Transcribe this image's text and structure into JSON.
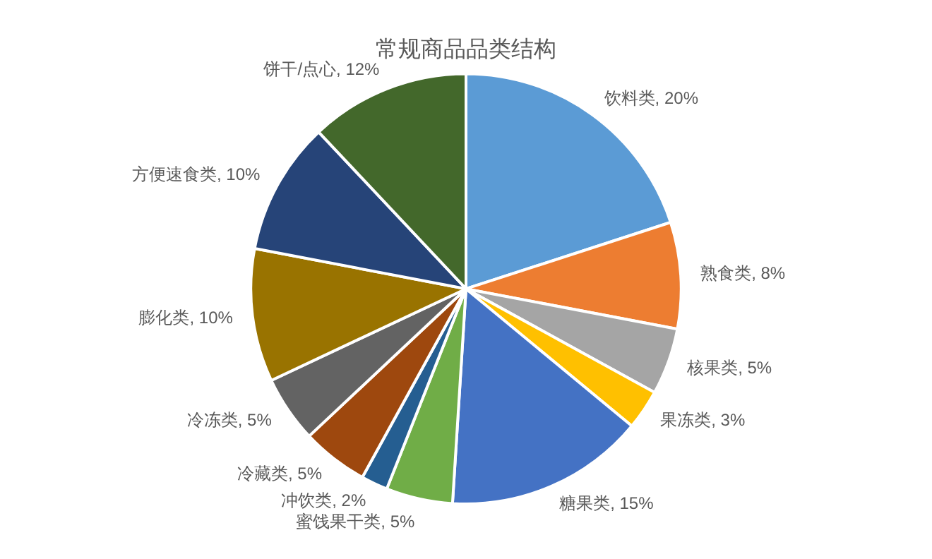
{
  "chart_data": {
    "type": "pie",
    "title": "常规商品品类结构",
    "categories": [
      "饮料类",
      "熟食类",
      "核果类",
      "果冻类",
      "糖果类",
      "蜜饯果干类",
      "冲饮类",
      "冷藏类",
      "冷冻类",
      "膨化类",
      "方便速食类",
      "饼干/点心"
    ],
    "values": [
      20,
      8,
      5,
      3,
      15,
      5,
      2,
      5,
      5,
      10,
      10,
      12
    ],
    "value_labels": [
      "20%",
      "8%",
      "5%",
      "3%",
      "15%",
      "5%",
      "2%",
      "5%",
      "5%",
      "10%",
      "10%",
      "12%"
    ],
    "colors": [
      "#5b9bd5",
      "#ed7d31",
      "#a5a5a5",
      "#ffc000",
      "#4472c4",
      "#70ad47",
      "#255e91",
      "#9e480e",
      "#636363",
      "#997300",
      "#264478",
      "#43682b"
    ],
    "legend": false
  }
}
